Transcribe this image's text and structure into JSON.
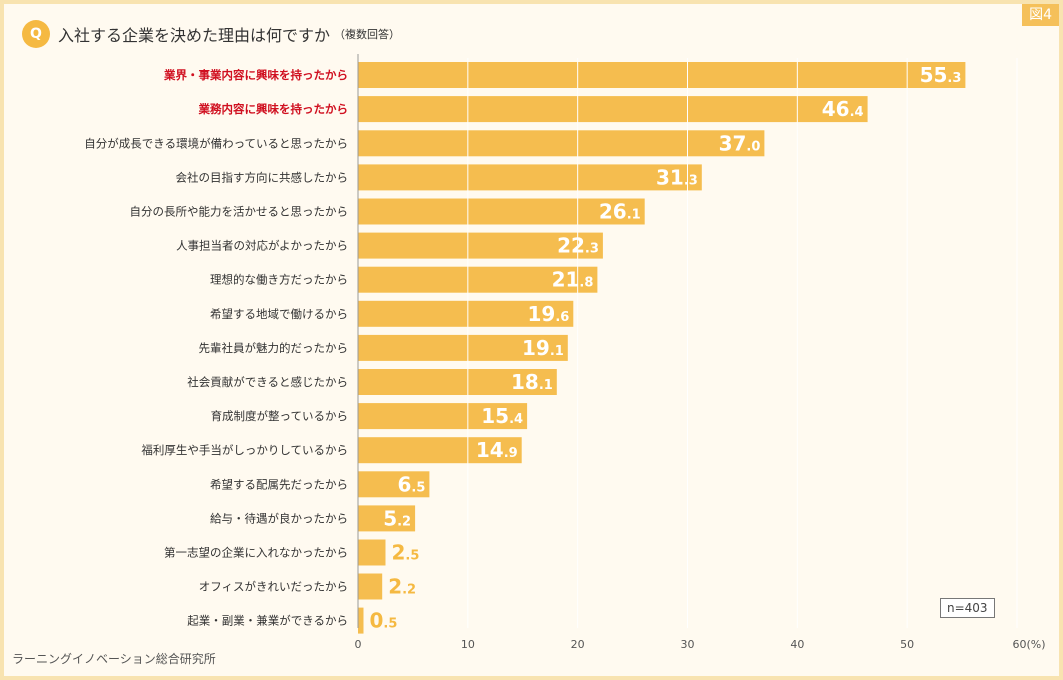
{
  "figure_label": "図4",
  "question": {
    "badge": "Q",
    "text": "入社する企業を決めた理由は何ですか",
    "note": "（複数回答）"
  },
  "sample_size": "n=403",
  "source": "ラーニングイノベーション総合研究所",
  "colors": {
    "bar": "#f5bd4f",
    "highlight_label": "#d01020",
    "value_inside": "#ffffff",
    "value_outside": "#f5b942",
    "gridline": "#ffffff",
    "axis": "#999999"
  },
  "chart_data": {
    "type": "bar",
    "orientation": "horizontal",
    "categories": [
      "業界・事業内容に興味を持ったから",
      "業務内容に興味を持ったから",
      "自分が成長できる環境が備わっていると思ったから",
      "会社の目指す方向に共感したから",
      "自分の長所や能力を活かせると思ったから",
      "人事担当者の対応がよかったから",
      "理想的な働き方だったから",
      "希望する地域で働けるから",
      "先輩社員が魅力的だったから",
      "社会貢献ができると感じたから",
      "育成制度が整っているから",
      "福利厚生や手当がしっかりしているから",
      "希望する配属先だったから",
      "給与・待遇が良かったから",
      "第一志望の企業に入れなかったから",
      "オフィスがきれいだったから",
      "起業・副業・兼業ができるから"
    ],
    "values": [
      55.3,
      46.4,
      37.0,
      31.3,
      26.1,
      22.3,
      21.8,
      19.6,
      19.1,
      18.1,
      15.4,
      14.9,
      6.5,
      5.2,
      2.5,
      2.2,
      0.5
    ],
    "highlighted": [
      0,
      1
    ],
    "xlim": [
      0,
      60
    ],
    "ticks": [
      0,
      10,
      20,
      30,
      40,
      50,
      60
    ],
    "unit_label": "(%)",
    "xlabel": "",
    "ylabel": ""
  }
}
